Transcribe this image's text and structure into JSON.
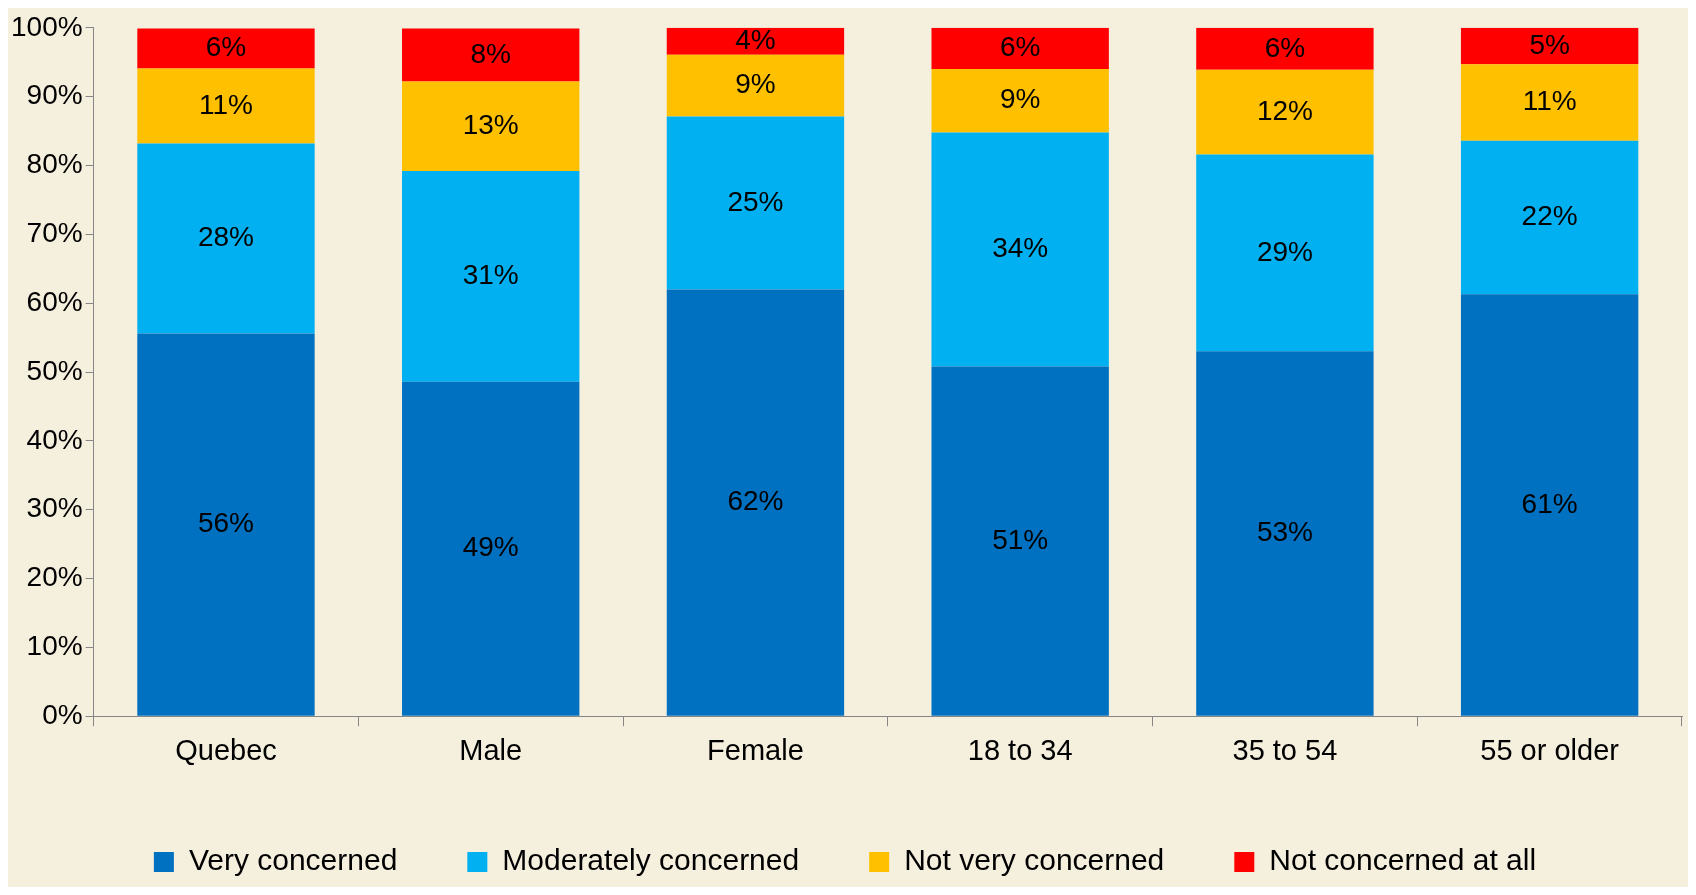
{
  "chart_data": {
    "type": "bar",
    "stacked": true,
    "categories": [
      "Quebec",
      "Male",
      "Female",
      "18 to 34",
      "35 to 54",
      "55 or older"
    ],
    "series": [
      {
        "name": "Very concerned",
        "color": "#0070c0",
        "values": [
          55.6,
          48.6,
          62.0,
          50.8,
          53.0,
          61.3
        ],
        "value_labels": [
          "56%",
          "49%",
          "62%",
          "51%",
          "53%",
          "61%"
        ]
      },
      {
        "name": "Moderately concerned",
        "color": "#00b0f0",
        "values": [
          27.6,
          30.6,
          25.1,
          34.0,
          28.6,
          22.3
        ],
        "value_labels": [
          "28%",
          "31%",
          "25%",
          "34%",
          "29%",
          "22%"
        ]
      },
      {
        "name": "Not very concerned",
        "color": "#ffc000",
        "values": [
          10.9,
          13.0,
          9.0,
          9.2,
          12.3,
          11.1
        ],
        "value_labels": [
          "11%",
          "13%",
          "9%",
          "9%",
          "12%",
          "11%"
        ]
      },
      {
        "name": "Not concerned at all",
        "color": "#ff0000",
        "values": [
          5.8,
          7.7,
          3.9,
          6.0,
          6.1,
          5.3
        ],
        "value_labels": [
          "6%",
          "8%",
          "4%",
          "6%",
          "6%",
          "5%"
        ]
      }
    ],
    "ylim": [
      0,
      100
    ],
    "yticks": [
      {
        "value": 0,
        "label": "0%"
      },
      {
        "value": 10,
        "label": "10%"
      },
      {
        "value": 20,
        "label": "20%"
      },
      {
        "value": 30,
        "label": "30%"
      },
      {
        "value": 40,
        "label": "40%"
      },
      {
        "value": 50,
        "label": "50%"
      },
      {
        "value": 60,
        "label": "60%"
      },
      {
        "value": 70,
        "label": "70%"
      },
      {
        "value": 80,
        "label": "80%"
      },
      {
        "value": 90,
        "label": "90%"
      },
      {
        "value": 100,
        "label": "100%"
      }
    ],
    "grid": false,
    "legend": "bottom"
  }
}
